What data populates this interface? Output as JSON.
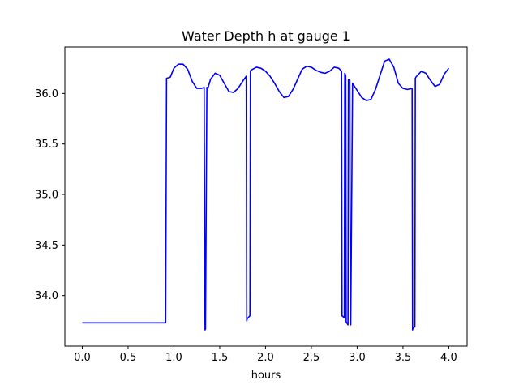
{
  "chart_data": {
    "type": "line",
    "title": "Water Depth h at gauge 1",
    "xlabel": "hours",
    "ylabel": "",
    "xlim": [
      -0.19,
      4.2
    ],
    "ylim": [
      33.5,
      36.46
    ],
    "xticks": [
      0.0,
      0.5,
      1.0,
      1.5,
      2.0,
      2.5,
      3.0,
      3.5,
      4.0
    ],
    "xtick_labels": [
      "0.0",
      "0.5",
      "1.0",
      "1.5",
      "2.0",
      "2.5",
      "3.0",
      "3.5",
      "4.0"
    ],
    "yticks": [
      34.0,
      34.5,
      35.0,
      35.5,
      36.0
    ],
    "ytick_labels": [
      "34.0",
      "34.5",
      "35.0",
      "35.5",
      "36.0"
    ],
    "grid": false,
    "colors": {
      "line": "#0000ff",
      "axes": "#000000"
    },
    "series": [
      {
        "x": [
          0.0,
          0.5,
          0.91,
          0.92,
          0.96,
          1.0,
          1.05,
          1.1,
          1.15,
          1.2,
          1.25,
          1.3,
          1.33,
          1.34,
          1.345,
          1.36,
          1.365,
          1.37,
          1.4,
          1.45,
          1.5,
          1.55,
          1.6,
          1.65,
          1.7,
          1.75,
          1.79,
          1.795,
          1.8,
          1.83,
          1.835,
          1.84,
          1.9,
          1.95,
          2.0,
          2.05,
          2.1,
          2.15,
          2.2,
          2.25,
          2.3,
          2.35,
          2.4,
          2.45,
          2.5,
          2.55,
          2.6,
          2.65,
          2.7,
          2.75,
          2.8,
          2.83,
          2.835,
          2.86,
          2.865,
          2.87,
          2.875,
          2.88,
          2.9,
          2.905,
          2.92,
          2.925,
          2.93,
          2.95,
          3.0,
          3.05,
          3.1,
          3.15,
          3.2,
          3.25,
          3.3,
          3.35,
          3.4,
          3.45,
          3.5,
          3.55,
          3.6,
          3.605,
          3.61,
          3.63,
          3.635,
          3.64,
          3.7,
          3.75,
          3.8,
          3.85,
          3.9,
          3.95,
          4.0
        ],
        "y": [
          33.73,
          33.73,
          33.73,
          36.15,
          36.16,
          36.25,
          36.29,
          36.29,
          36.24,
          36.12,
          36.05,
          36.05,
          36.06,
          33.66,
          33.67,
          36.06,
          36.05,
          36.05,
          36.14,
          36.2,
          36.18,
          36.1,
          36.02,
          36.01,
          36.05,
          36.12,
          36.17,
          33.75,
          33.77,
          33.8,
          36.22,
          36.23,
          36.26,
          36.25,
          36.22,
          36.17,
          36.1,
          36.02,
          35.96,
          35.97,
          36.04,
          36.14,
          36.24,
          36.27,
          36.26,
          36.23,
          36.21,
          36.2,
          36.22,
          36.26,
          36.25,
          36.22,
          33.8,
          33.78,
          36.2,
          36.19,
          36.18,
          33.74,
          33.71,
          36.14,
          36.13,
          33.72,
          33.71,
          36.1,
          36.03,
          35.96,
          35.93,
          35.94,
          36.04,
          36.18,
          36.32,
          36.34,
          36.26,
          36.1,
          36.05,
          36.04,
          36.05,
          33.66,
          33.68,
          33.69,
          36.15,
          36.16,
          36.22,
          36.2,
          36.13,
          36.07,
          36.09,
          36.19,
          36.25
        ]
      }
    ]
  }
}
